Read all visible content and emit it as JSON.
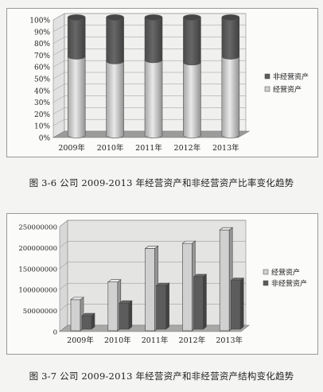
{
  "chart_data": [
    {
      "type": "bar",
      "stacked": true,
      "percent": true,
      "categories": [
        "2009年",
        "2010年",
        "2011年",
        "2012年",
        "2013年"
      ],
      "series": [
        {
          "name": "经营资产",
          "values": [
            67,
            63,
            64,
            62,
            67
          ],
          "color": "#d0d0d0"
        },
        {
          "name": "非经营资产",
          "values": [
            33,
            37,
            36,
            38,
            33
          ],
          "color": "#5c5c5c"
        }
      ],
      "yticks": [
        "0%",
        "10%",
        "20%",
        "30%",
        "40%",
        "50%",
        "60%",
        "70%",
        "80%",
        "90%",
        "100%"
      ],
      "ylim": [
        0,
        100
      ],
      "grid": true,
      "legend_position": "right",
      "legend": [
        "非经营资产",
        "经营资产"
      ],
      "caption": "图 3-6 公司 2009-2013 年经营资产和非经营资产比率变化趋势"
    },
    {
      "type": "bar",
      "grouped": true,
      "categories": [
        "2009年",
        "2010年",
        "2011年",
        "2012年",
        "2013年"
      ],
      "series": [
        {
          "name": "经营资产",
          "values": [
            76000000,
            118000000,
            198000000,
            210000000,
            242000000
          ],
          "color": "#d0d0d0"
        },
        {
          "name": "非经营资产",
          "values": [
            34000000,
            64000000,
            106000000,
            127000000,
            118000000
          ],
          "color": "#5c5c5c"
        }
      ],
      "yticks": [
        "0",
        "50000000",
        "100000000",
        "150000000",
        "200000000",
        "250000000"
      ],
      "ylim": [
        0,
        250000000
      ],
      "grid": true,
      "legend_position": "right",
      "legend": [
        "经营资产",
        "非经营资产"
      ],
      "caption": "图 3-7 公司 2009-2013 年经营资产和非经营资产结构变化趋势"
    }
  ]
}
